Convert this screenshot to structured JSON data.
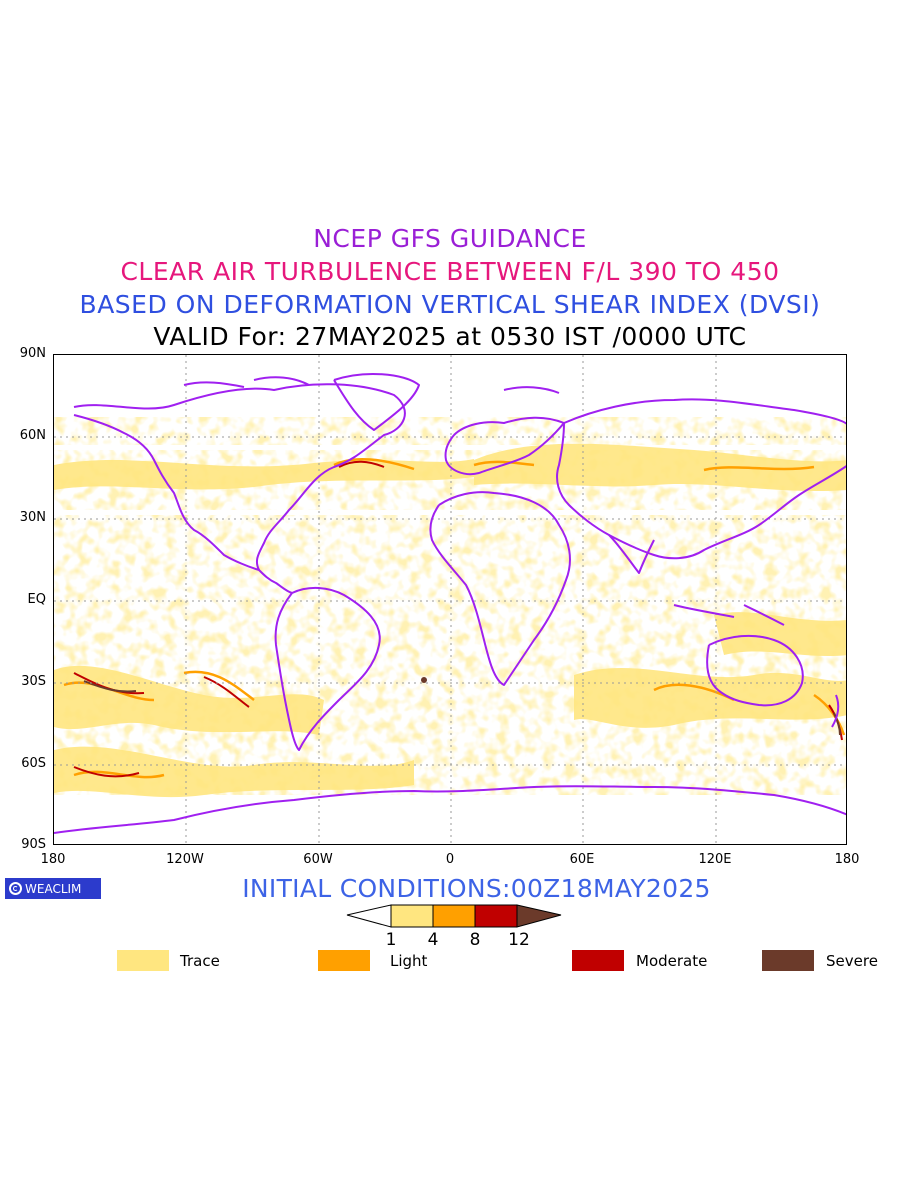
{
  "titles": {
    "line1": "NCEP GFS GUIDANCE",
    "line2": "CLEAR AIR TURBULENCE BETWEEN F/L 390 TO 450",
    "line3": "BASED ON DEFORMATION VERTICAL SHEAR INDEX (DVSI)",
    "line4": "VALID For: 27MAY2025 at 0530 IST /0000 UTC"
  },
  "axes": {
    "lat_labels": [
      "90N",
      "60N",
      "30N",
      "EQ",
      "30S",
      "60S",
      "90S"
    ],
    "lon_labels": [
      "180",
      "120W",
      "60W",
      "0",
      "60E",
      "120E",
      "180"
    ]
  },
  "badge": {
    "text": "WEACLIM",
    "icon": "weaclim-logo-icon"
  },
  "initial_conditions": "INITIAL CONDITIONS:00Z18MAY2025",
  "colorbar": {
    "ticks": [
      "1",
      "4",
      "8",
      "12"
    ],
    "colors": [
      "#ffffff",
      "#ffe680",
      "#ffa000",
      "#c00000",
      "#6b3a2a"
    ]
  },
  "legend": [
    {
      "label": "Trace",
      "color": "#ffe680"
    },
    {
      "label": "Light",
      "color": "#ffa000"
    },
    {
      "label": "Moderate",
      "color": "#c00000"
    },
    {
      "label": "Severe",
      "color": "#6b3a2a"
    }
  ],
  "map": {
    "coastline_color": "#a020f0",
    "grid_color": "#9a9a9a",
    "turbulence_bands": [
      {
        "level": "Trace",
        "color": "#ffe680"
      },
      {
        "level": "Light",
        "color": "#ffa000"
      },
      {
        "level": "Moderate",
        "color": "#c00000"
      },
      {
        "level": "Severe",
        "color": "#6b3a2a"
      }
    ]
  }
}
